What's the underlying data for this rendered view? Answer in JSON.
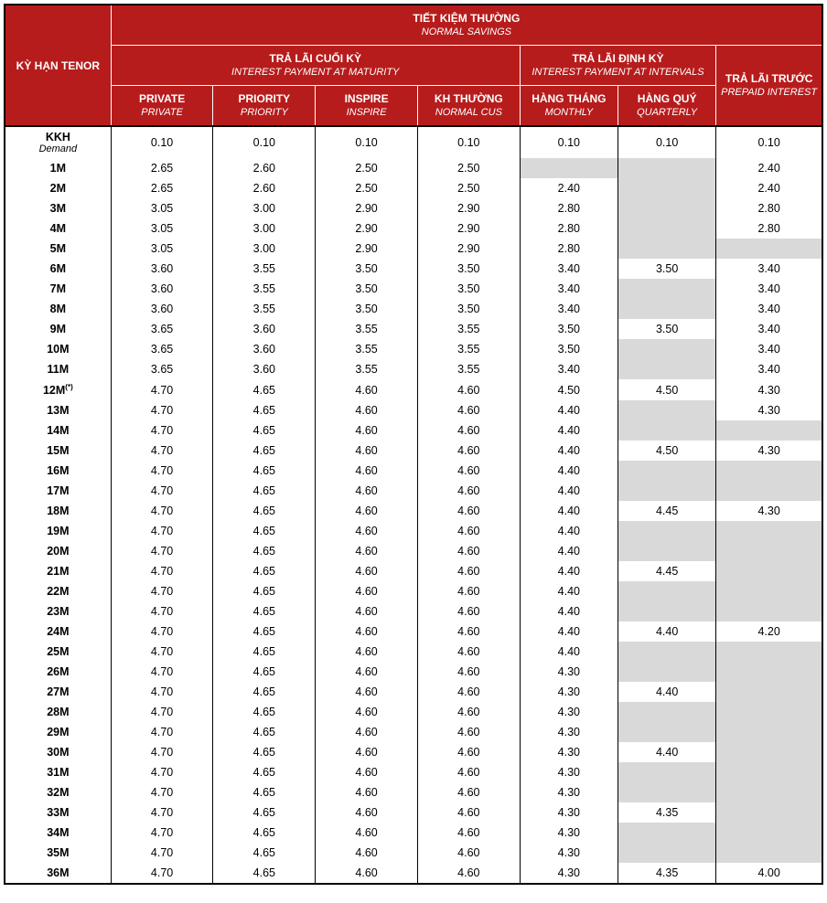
{
  "type": "table",
  "colors": {
    "header_bg": "#b71c1c",
    "header_text": "#ffffff",
    "body_bg": "#ffffff",
    "empty_cell_bg": "#d9d9d9",
    "border": "#000000"
  },
  "fonts": {
    "header_vn_weight": "bold",
    "header_en_style": "italic",
    "body_size_pt": 9.5
  },
  "header": {
    "corner": {
      "vn": "KỲ HẠN",
      "en": "TENOR"
    },
    "top": {
      "vn": "TIẾT KIỆM THƯỜNG",
      "en": "NORMAL SAVINGS"
    },
    "group1": {
      "vn": "TRẢ LÃI CUỐI KỲ",
      "en": "INTEREST PAYMENT AT MATURITY"
    },
    "group2": {
      "vn": "TRẢ LÃI ĐỊNH KỲ",
      "en": "INTEREST PAYMENT AT INTERVALS"
    },
    "group3": {
      "vn": "TRẢ LÃI TRƯỚC",
      "en": "PREPAID INTEREST"
    },
    "c1": {
      "vn": "PRIVATE",
      "en": "PRIVATE"
    },
    "c2": {
      "vn": "PRIORITY",
      "en": "PRIORITY"
    },
    "c3": {
      "vn": "INSPIRE",
      "en": "INSPIRE"
    },
    "c4": {
      "vn": "KH THƯỜNG",
      "en": "NORMAL CUS"
    },
    "c5": {
      "vn": "HÀNG THÁNG",
      "en": "MONTHLY"
    },
    "c6": {
      "vn": "HÀNG QUÝ",
      "en": "QUARTERLY"
    }
  },
  "column_widths_pct": [
    13,
    12.5,
    12.5,
    12.5,
    12.5,
    12,
    12,
    13
  ],
  "rows": [
    {
      "tenor": "KKH",
      "tenor_sub": "Demand",
      "v": [
        "0.10",
        "0.10",
        "0.10",
        "0.10",
        "0.10",
        "0.10",
        "0.10"
      ]
    },
    {
      "tenor": "1M",
      "v": [
        "2.65",
        "2.60",
        "2.50",
        "2.50",
        "",
        "",
        "2.40"
      ]
    },
    {
      "tenor": "2M",
      "v": [
        "2.65",
        "2.60",
        "2.50",
        "2.50",
        "2.40",
        "",
        "2.40"
      ]
    },
    {
      "tenor": "3M",
      "v": [
        "3.05",
        "3.00",
        "2.90",
        "2.90",
        "2.80",
        "",
        "2.80"
      ]
    },
    {
      "tenor": "4M",
      "v": [
        "3.05",
        "3.00",
        "2.90",
        "2.90",
        "2.80",
        "",
        "2.80"
      ]
    },
    {
      "tenor": "5M",
      "v": [
        "3.05",
        "3.00",
        "2.90",
        "2.90",
        "2.80",
        "",
        ""
      ]
    },
    {
      "tenor": "6M",
      "v": [
        "3.60",
        "3.55",
        "3.50",
        "3.50",
        "3.40",
        "3.50",
        "3.40"
      ]
    },
    {
      "tenor": "7M",
      "v": [
        "3.60",
        "3.55",
        "3.50",
        "3.50",
        "3.40",
        "",
        "3.40"
      ]
    },
    {
      "tenor": "8M",
      "v": [
        "3.60",
        "3.55",
        "3.50",
        "3.50",
        "3.40",
        "",
        "3.40"
      ]
    },
    {
      "tenor": "9M",
      "v": [
        "3.65",
        "3.60",
        "3.55",
        "3.55",
        "3.50",
        "3.50",
        "3.40"
      ]
    },
    {
      "tenor": "10M",
      "v": [
        "3.65",
        "3.60",
        "3.55",
        "3.55",
        "3.50",
        "",
        "3.40"
      ]
    },
    {
      "tenor": "11M",
      "v": [
        "3.65",
        "3.60",
        "3.55",
        "3.55",
        "3.40",
        "",
        "3.40"
      ]
    },
    {
      "tenor": "12M",
      "tenor_sup": "(*)",
      "v": [
        "4.70",
        "4.65",
        "4.60",
        "4.60",
        "4.50",
        "4.50",
        "4.30"
      ]
    },
    {
      "tenor": "13M",
      "v": [
        "4.70",
        "4.65",
        "4.60",
        "4.60",
        "4.40",
        "",
        "4.30"
      ]
    },
    {
      "tenor": "14M",
      "v": [
        "4.70",
        "4.65",
        "4.60",
        "4.60",
        "4.40",
        "",
        ""
      ]
    },
    {
      "tenor": "15M",
      "v": [
        "4.70",
        "4.65",
        "4.60",
        "4.60",
        "4.40",
        "4.50",
        "4.30"
      ]
    },
    {
      "tenor": "16M",
      "v": [
        "4.70",
        "4.65",
        "4.60",
        "4.60",
        "4.40",
        "",
        ""
      ]
    },
    {
      "tenor": "17M",
      "v": [
        "4.70",
        "4.65",
        "4.60",
        "4.60",
        "4.40",
        "",
        ""
      ]
    },
    {
      "tenor": "18M",
      "v": [
        "4.70",
        "4.65",
        "4.60",
        "4.60",
        "4.40",
        "4.45",
        "4.30"
      ]
    },
    {
      "tenor": "19M",
      "v": [
        "4.70",
        "4.65",
        "4.60",
        "4.60",
        "4.40",
        "",
        ""
      ]
    },
    {
      "tenor": "20M",
      "v": [
        "4.70",
        "4.65",
        "4.60",
        "4.60",
        "4.40",
        "",
        ""
      ]
    },
    {
      "tenor": "21M",
      "v": [
        "4.70",
        "4.65",
        "4.60",
        "4.60",
        "4.40",
        "4.45",
        ""
      ]
    },
    {
      "tenor": "22M",
      "v": [
        "4.70",
        "4.65",
        "4.60",
        "4.60",
        "4.40",
        "",
        ""
      ]
    },
    {
      "tenor": "23M",
      "v": [
        "4.70",
        "4.65",
        "4.60",
        "4.60",
        "4.40",
        "",
        ""
      ]
    },
    {
      "tenor": "24M",
      "v": [
        "4.70",
        "4.65",
        "4.60",
        "4.60",
        "4.40",
        "4.40",
        "4.20"
      ]
    },
    {
      "tenor": "25M",
      "v": [
        "4.70",
        "4.65",
        "4.60",
        "4.60",
        "4.40",
        "",
        ""
      ]
    },
    {
      "tenor": "26M",
      "v": [
        "4.70",
        "4.65",
        "4.60",
        "4.60",
        "4.30",
        "",
        ""
      ]
    },
    {
      "tenor": "27M",
      "v": [
        "4.70",
        "4.65",
        "4.60",
        "4.60",
        "4.30",
        "4.40",
        ""
      ]
    },
    {
      "tenor": "28M",
      "v": [
        "4.70",
        "4.65",
        "4.60",
        "4.60",
        "4.30",
        "",
        ""
      ]
    },
    {
      "tenor": "29M",
      "v": [
        "4.70",
        "4.65",
        "4.60",
        "4.60",
        "4.30",
        "",
        ""
      ]
    },
    {
      "tenor": "30M",
      "v": [
        "4.70",
        "4.65",
        "4.60",
        "4.60",
        "4.30",
        "4.40",
        ""
      ]
    },
    {
      "tenor": "31M",
      "v": [
        "4.70",
        "4.65",
        "4.60",
        "4.60",
        "4.30",
        "",
        ""
      ]
    },
    {
      "tenor": "32M",
      "v": [
        "4.70",
        "4.65",
        "4.60",
        "4.60",
        "4.30",
        "",
        ""
      ]
    },
    {
      "tenor": "33M",
      "v": [
        "4.70",
        "4.65",
        "4.60",
        "4.60",
        "4.30",
        "4.35",
        ""
      ]
    },
    {
      "tenor": "34M",
      "v": [
        "4.70",
        "4.65",
        "4.60",
        "4.60",
        "4.30",
        "",
        ""
      ]
    },
    {
      "tenor": "35M",
      "v": [
        "4.70",
        "4.65",
        "4.60",
        "4.60",
        "4.30",
        "",
        ""
      ]
    },
    {
      "tenor": "36M",
      "v": [
        "4.70",
        "4.65",
        "4.60",
        "4.60",
        "4.30",
        "4.35",
        "4.00"
      ]
    }
  ]
}
